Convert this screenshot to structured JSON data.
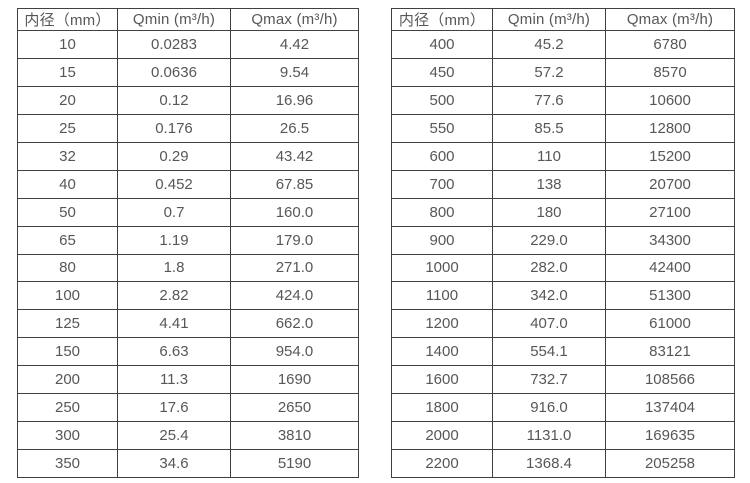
{
  "colors": {
    "background": "#ffffff",
    "table_border": "#404040",
    "text": "#575757"
  },
  "tables": [
    {
      "name": "flow-rate-table-dn10-350",
      "columns": [
        "内径（mm）",
        "Qmin (m³/h)",
        "Qmax (m³/h)"
      ],
      "rows": [
        [
          "10",
          "0.0283",
          "4.42"
        ],
        [
          "15",
          "0.0636",
          "9.54"
        ],
        [
          "20",
          "0.12",
          "16.96"
        ],
        [
          "25",
          "0.176",
          "26.5"
        ],
        [
          "32",
          "0.29",
          "43.42"
        ],
        [
          "40",
          "0.452",
          "67.85"
        ],
        [
          "50",
          "0.7",
          "160.0"
        ],
        [
          "65",
          "1.19",
          "179.0"
        ],
        [
          "80",
          "1.8",
          "271.0"
        ],
        [
          "100",
          "2.82",
          "424.0"
        ],
        [
          "125",
          "4.41",
          "662.0"
        ],
        [
          "150",
          "6.63",
          "954.0"
        ],
        [
          "200",
          "11.3",
          "1690"
        ],
        [
          "250",
          "17.6",
          "2650"
        ],
        [
          "300",
          "25.4",
          "3810"
        ],
        [
          "350",
          "34.6",
          "5190"
        ]
      ]
    },
    {
      "name": "flow-rate-table-dn400-2200",
      "columns": [
        "内径（mm）",
        "Qmin (m³/h)",
        "Qmax (m³/h)"
      ],
      "rows": [
        [
          "400",
          "45.2",
          "6780"
        ],
        [
          "450",
          "57.2",
          "8570"
        ],
        [
          "500",
          "77.6",
          "10600"
        ],
        [
          "550",
          "85.5",
          "12800"
        ],
        [
          "600",
          "110",
          "15200"
        ],
        [
          "700",
          "138",
          "20700"
        ],
        [
          "800",
          "180",
          "27100"
        ],
        [
          "900",
          "229.0",
          "34300"
        ],
        [
          "1000",
          "282.0",
          "42400"
        ],
        [
          "1100",
          "342.0",
          "51300"
        ],
        [
          "1200",
          "407.0",
          "61000"
        ],
        [
          "1400",
          "554.1",
          "83121"
        ],
        [
          "1600",
          "732.7",
          "108566"
        ],
        [
          "1800",
          "916.0",
          "137404"
        ],
        [
          "2000",
          "1131.0",
          "169635"
        ],
        [
          "2200",
          "1368.4",
          "205258"
        ]
      ]
    }
  ]
}
